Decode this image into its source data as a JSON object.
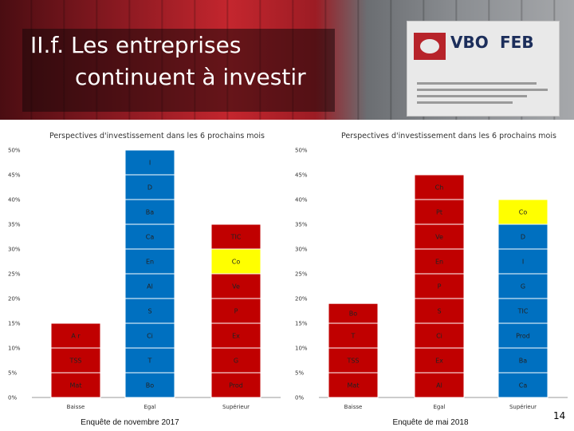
{
  "slide": {
    "title_line1": "II.f. Les entreprises",
    "title_line2": "continuent à investir",
    "logo_text_vbo": "VBO",
    "logo_text_feb": "FEB",
    "page_number": "14"
  },
  "colors": {
    "blue": "#0070c0",
    "red": "#c00000",
    "yellow": "#ffff00"
  },
  "chart_data": [
    {
      "type": "bar",
      "stacked": true,
      "title": "Perspectives d'investissement dans les 6 prochains mois",
      "caption": "Enquête de novembre 2017",
      "categories": [
        "Baisse",
        "Egal",
        "Supérieur"
      ],
      "ylim": [
        0,
        50
      ],
      "yticks": [
        "0%",
        "5%",
        "10%",
        "15%",
        "20%",
        "25%",
        "30%",
        "35%",
        "40%",
        "45%",
        "50%"
      ],
      "bars": [
        {
          "category": "Baisse",
          "color": "red",
          "segments": [
            {
              "label": "Mat",
              "value": 5
            },
            {
              "label": "TSS",
              "value": 5
            },
            {
              "label": "A r",
              "value": 5
            }
          ]
        },
        {
          "category": "Egal",
          "color": "blue",
          "segments": [
            {
              "label": "Bo",
              "value": 5
            },
            {
              "label": "T",
              "value": 5
            },
            {
              "label": "Ci",
              "value": 5
            },
            {
              "label": "S",
              "value": 5
            },
            {
              "label": "Al",
              "value": 5
            },
            {
              "label": "En",
              "value": 5
            },
            {
              "label": "Ca",
              "value": 5
            },
            {
              "label": "Ba",
              "value": 5
            },
            {
              "label": "D",
              "value": 5
            },
            {
              "label": "I",
              "value": 5
            }
          ]
        },
        {
          "category": "Supérieur",
          "color": "red",
          "segments": [
            {
              "label": "Prod",
              "value": 5
            },
            {
              "label": "G",
              "value": 5
            },
            {
              "label": "Ex",
              "value": 5
            },
            {
              "label": "P",
              "value": 5
            },
            {
              "label": "Ve",
              "value": 5
            },
            {
              "label": "Co",
              "value": 5,
              "color": "yellow"
            },
            {
              "label": "TIC",
              "value": 5
            }
          ]
        }
      ]
    },
    {
      "type": "bar",
      "stacked": true,
      "title": "Perspectives d'investissement dans les 6 prochains mois",
      "caption": "Enquête de mai 2018",
      "categories": [
        "Baisse",
        "Egal",
        "Supérieur"
      ],
      "ylim": [
        0,
        50
      ],
      "yticks": [
        "0%",
        "5%",
        "10%",
        "15%",
        "20%",
        "25%",
        "30%",
        "35%",
        "40%",
        "45%",
        "50%"
      ],
      "bars": [
        {
          "category": "Baisse",
          "color": "red",
          "segments": [
            {
              "label": "Mat",
              "value": 5
            },
            {
              "label": "TSS",
              "value": 5
            },
            {
              "label": "T",
              "value": 5
            },
            {
              "label": "Bo",
              "value": 4
            }
          ]
        },
        {
          "category": "Egal",
          "color": "red",
          "segments": [
            {
              "label": "Al",
              "value": 5
            },
            {
              "label": "Ex",
              "value": 5
            },
            {
              "label": "Ci",
              "value": 5
            },
            {
              "label": "S",
              "value": 5
            },
            {
              "label": "P",
              "value": 5
            },
            {
              "label": "En",
              "value": 5
            },
            {
              "label": "Ve",
              "value": 5
            },
            {
              "label": "Pt",
              "value": 5
            },
            {
              "label": "Ch",
              "value": 5
            }
          ]
        },
        {
          "category": "Supérieur",
          "color": "blue",
          "segments": [
            {
              "label": "Ca",
              "value": 5
            },
            {
              "label": "Ba",
              "value": 5
            },
            {
              "label": "Prod",
              "value": 5
            },
            {
              "label": "TIC",
              "value": 5
            },
            {
              "label": "G",
              "value": 5
            },
            {
              "label": "I",
              "value": 5
            },
            {
              "label": "D",
              "value": 5
            },
            {
              "label": "Co",
              "value": 5,
              "color": "yellow"
            }
          ]
        }
      ]
    }
  ]
}
